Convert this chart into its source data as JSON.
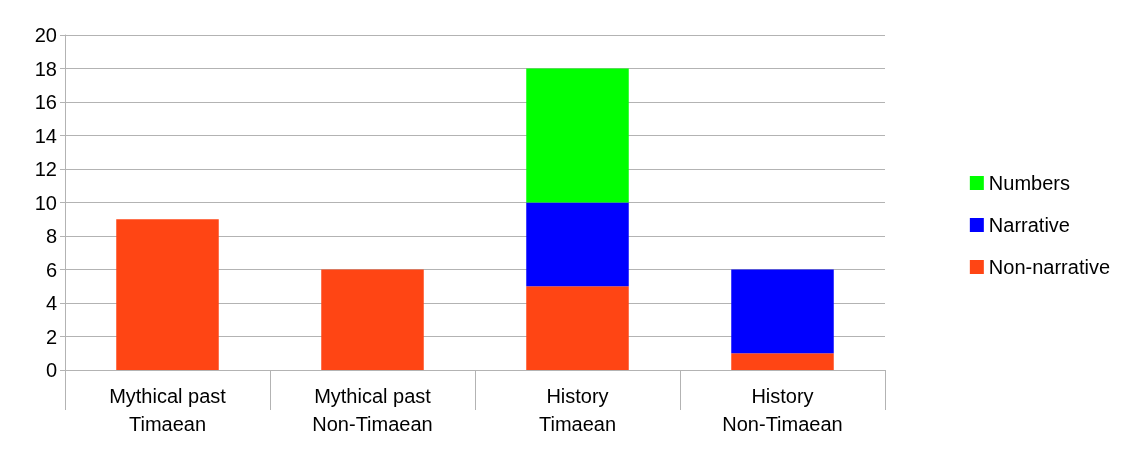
{
  "chart_data": {
    "type": "bar",
    "stacked": true,
    "categories": [
      "Mythical past\nTimaean",
      "Mythical past\nNon-Timaean",
      "History\nTimaean",
      "History\nNon-Timaean"
    ],
    "series": [
      {
        "name": "Non-narrative",
        "color": "#ff4514",
        "values": [
          9,
          6,
          5,
          1
        ]
      },
      {
        "name": "Narrative",
        "color": "#0000ff",
        "values": [
          null,
          null,
          5,
          5
        ]
      },
      {
        "name": "Numbers",
        "color": "#00ff00",
        "values": [
          null,
          null,
          8,
          null
        ]
      }
    ],
    "ylim": [
      0,
      20
    ],
    "yticks": [
      0,
      2,
      4,
      6,
      8,
      10,
      12,
      14,
      16,
      18,
      20
    ],
    "grid": "y",
    "legend": "right"
  }
}
